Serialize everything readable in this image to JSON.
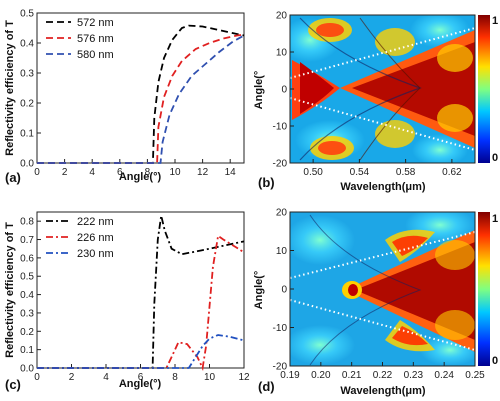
{
  "chart_data": [
    {
      "panel": "(a)",
      "type": "line",
      "xlabel": "Angle(°)",
      "ylabel": "Reflectivity efficiency of T",
      "xlim": [
        0,
        15
      ],
      "ylim": [
        0,
        0.5
      ],
      "xticks": [
        "0",
        "2",
        "4",
        "6",
        "8",
        "10",
        "12",
        "14"
      ],
      "yticks": [
        "0.0",
        "0.1",
        "0.2",
        "0.3",
        "0.4",
        "0.5"
      ],
      "legend_position": "top-left",
      "series": [
        {
          "name": "572 nm",
          "color": "#000000",
          "dash": "dash",
          "points": [
            [
              0,
              0
            ],
            [
              8.4,
              0
            ],
            [
              8.5,
              0.15
            ],
            [
              8.8,
              0.27
            ],
            [
              9.2,
              0.35
            ],
            [
              9.8,
              0.41
            ],
            [
              10.5,
              0.45
            ],
            [
              11,
              0.458
            ],
            [
              12,
              0.455
            ],
            [
              13,
              0.445
            ],
            [
              14,
              0.435
            ],
            [
              15,
              0.425
            ]
          ]
        },
        {
          "name": "576 nm",
          "color": "#e02020",
          "dash": "dash",
          "points": [
            [
              0,
              0
            ],
            [
              8.7,
              0
            ],
            [
              8.8,
              0.12
            ],
            [
              9.2,
              0.22
            ],
            [
              9.8,
              0.29
            ],
            [
              10.5,
              0.34
            ],
            [
              11.5,
              0.38
            ],
            [
              12.5,
              0.4
            ],
            [
              13.5,
              0.415
            ],
            [
              14.5,
              0.425
            ],
            [
              15,
              0.428
            ]
          ]
        },
        {
          "name": "580 nm",
          "color": "#3050b0",
          "dash": "dash",
          "points": [
            [
              0,
              0
            ],
            [
              8.95,
              0
            ],
            [
              9.1,
              0.07
            ],
            [
              9.6,
              0.16
            ],
            [
              10.3,
              0.23
            ],
            [
              11.2,
              0.29
            ],
            [
              12.2,
              0.33
            ],
            [
              13.2,
              0.37
            ],
            [
              14.2,
              0.405
            ],
            [
              15,
              0.425
            ]
          ]
        }
      ]
    },
    {
      "panel": "(b)",
      "type": "heatmap",
      "xlabel": "Wavelength(μm)",
      "ylabel": "Angle(°",
      "xlim": [
        0.48,
        0.64
      ],
      "ylim": [
        -20,
        20
      ],
      "xticks": [
        "0.50",
        "0.54",
        "0.58",
        "0.62"
      ],
      "yticks": [
        "20",
        "10",
        "0",
        "-10",
        "-20"
      ],
      "colorbar_range": [
        0,
        1
      ],
      "colorbar_ticks": [
        "1",
        "0"
      ]
    },
    {
      "panel": "(c)",
      "type": "line",
      "xlabel": "Angle(°)",
      "ylabel": "Reflectivity efficiency of T",
      "xlim": [
        0,
        12
      ],
      "ylim": [
        0,
        0.85
      ],
      "xticks": [
        "0",
        "2",
        "4",
        "6",
        "8",
        "10",
        "12"
      ],
      "yticks": [
        "0.0",
        "0.1",
        "0.2",
        "0.3",
        "0.4",
        "0.5",
        "0.6",
        "0.7",
        "0.8"
      ],
      "legend_position": "top-left",
      "series": [
        {
          "name": "222 nm",
          "color": "#000000",
          "dash": "dashdot",
          "points": [
            [
              0,
              0
            ],
            [
              6.7,
              0
            ],
            [
              6.8,
              0.35
            ],
            [
              7.0,
              0.7
            ],
            [
              7.2,
              0.83
            ],
            [
              7.4,
              0.75
            ],
            [
              7.8,
              0.65
            ],
            [
              8.4,
              0.62
            ],
            [
              9.5,
              0.64
            ],
            [
              10.5,
              0.66
            ],
            [
              11.5,
              0.68
            ],
            [
              12,
              0.69
            ]
          ]
        },
        {
          "name": "226 nm",
          "color": "#e02020",
          "dash": "dashdot",
          "points": [
            [
              0,
              0
            ],
            [
              7.5,
              0
            ],
            [
              7.8,
              0.06
            ],
            [
              8.2,
              0.14
            ],
            [
              8.7,
              0.13
            ],
            [
              9.3,
              0.06
            ],
            [
              9.6,
              0.0
            ],
            [
              9.8,
              0.12
            ],
            [
              10.2,
              0.55
            ],
            [
              10.5,
              0.72
            ],
            [
              10.8,
              0.7
            ],
            [
              11.5,
              0.66
            ],
            [
              12,
              0.63
            ]
          ]
        },
        {
          "name": "230 nm",
          "color": "#2050c0",
          "dash": "dashdot",
          "points": [
            [
              0,
              0
            ],
            [
              8.8,
              0
            ],
            [
              9.2,
              0.06
            ],
            [
              9.6,
              0.12
            ],
            [
              10.0,
              0.16
            ],
            [
              10.5,
              0.18
            ],
            [
              11.2,
              0.17
            ],
            [
              12,
              0.15
            ]
          ]
        }
      ]
    },
    {
      "panel": "(d)",
      "type": "heatmap",
      "xlabel": "Wavelength(μm)",
      "ylabel": "Angle(°",
      "xlim": [
        0.19,
        0.25
      ],
      "ylim": [
        -20,
        20
      ],
      "xticks": [
        "0.19",
        "0.20",
        "0.21",
        "0.22",
        "0.23",
        "0.24",
        "0.25"
      ],
      "yticks": [
        "20",
        "10",
        "0",
        "-10",
        "-20"
      ],
      "colorbar_range": [
        0,
        1
      ],
      "colorbar_ticks": [
        "1",
        "0"
      ]
    }
  ]
}
